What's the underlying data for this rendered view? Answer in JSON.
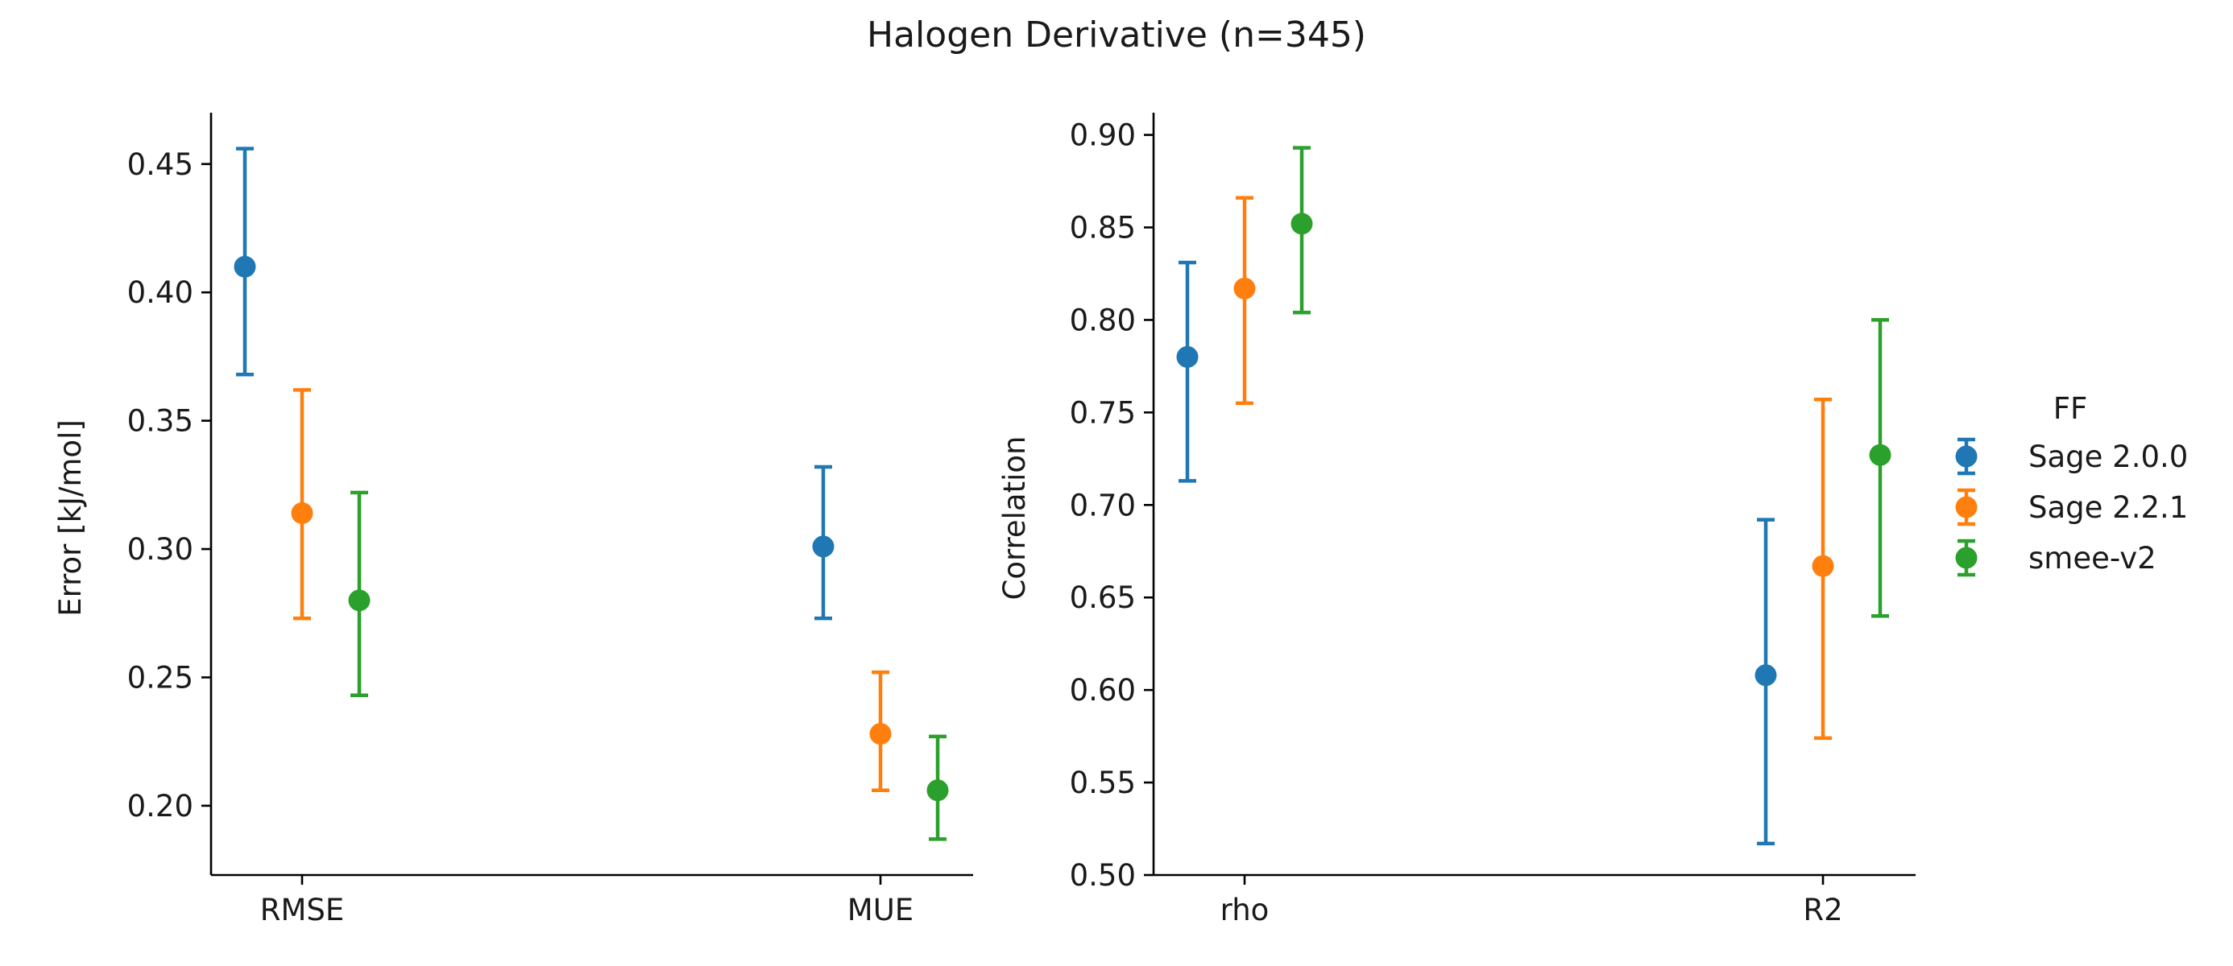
{
  "title": "Halogen Derivative (n=345)",
  "legend": {
    "title": "FF",
    "entries": [
      {
        "name": "Sage 2.0.0",
        "color": "#1f77b4"
      },
      {
        "name": "Sage 2.2.1",
        "color": "#ff7f0e"
      },
      {
        "name": "smee-v2",
        "color": "#2ca02c"
      }
    ]
  },
  "chart_data": [
    {
      "type": "scatter",
      "subtype": "pointplot-with-errorbars",
      "ylabel": "Error [kJ/mol]",
      "xlabel": "",
      "ylim": [
        0.173,
        0.47
      ],
      "yticks": [
        0.2,
        0.25,
        0.3,
        0.35,
        0.4,
        0.45
      ],
      "ytick_labels": [
        "0.20",
        "0.25",
        "0.30",
        "0.35",
        "0.40",
        "0.45"
      ],
      "categories": [
        "RMSE",
        "MUE"
      ],
      "series": [
        {
          "name": "Sage 2.0.0",
          "values": [
            0.41,
            0.301
          ],
          "lower": [
            0.368,
            0.273
          ],
          "upper": [
            0.456,
            0.332
          ]
        },
        {
          "name": "Sage 2.2.1",
          "values": [
            0.314,
            0.228
          ],
          "lower": [
            0.273,
            0.206
          ],
          "upper": [
            0.362,
            0.252
          ]
        },
        {
          "name": "smee-v2",
          "values": [
            0.28,
            0.206
          ],
          "lower": [
            0.243,
            0.187
          ],
          "upper": [
            0.322,
            0.227
          ]
        }
      ]
    },
    {
      "type": "scatter",
      "subtype": "pointplot-with-errorbars",
      "ylabel": "Correlation",
      "xlabel": "",
      "ylim": [
        0.5,
        0.912
      ],
      "yticks": [
        0.5,
        0.55,
        0.6,
        0.65,
        0.7,
        0.75,
        0.8,
        0.85,
        0.9
      ],
      "ytick_labels": [
        "0.50",
        "0.55",
        "0.60",
        "0.65",
        "0.70",
        "0.75",
        "0.80",
        "0.85",
        "0.90"
      ],
      "categories": [
        "rho",
        "R2"
      ],
      "series": [
        {
          "name": "Sage 2.0.0",
          "values": [
            0.78,
            0.608
          ],
          "lower": [
            0.713,
            0.517
          ],
          "upper": [
            0.831,
            0.692
          ]
        },
        {
          "name": "Sage 2.2.1",
          "values": [
            0.817,
            0.667
          ],
          "lower": [
            0.755,
            0.574
          ],
          "upper": [
            0.866,
            0.757
          ]
        },
        {
          "name": "smee-v2",
          "values": [
            0.852,
            0.727
          ],
          "lower": [
            0.804,
            0.64
          ],
          "upper": [
            0.893,
            0.8
          ]
        }
      ]
    }
  ]
}
